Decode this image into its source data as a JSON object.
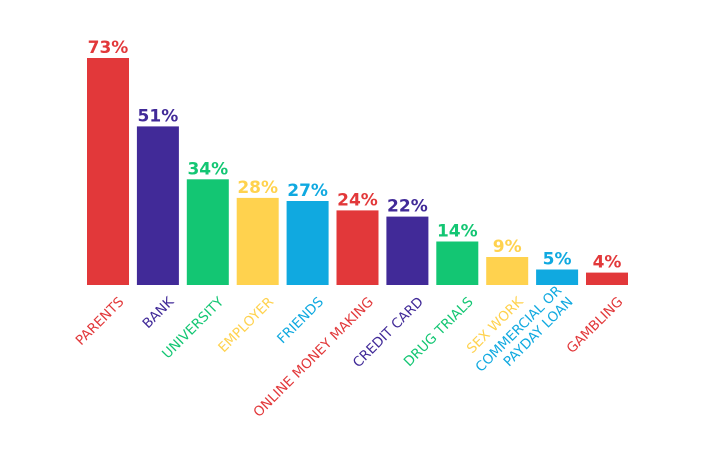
{
  "chart_data": {
    "type": "bar",
    "categories": [
      "PARENTS",
      "BANK",
      "UNIVERSITY",
      "EMPLOYER",
      "FRIENDS",
      "ONLINE MONEY MAKING",
      "CREDIT CARD",
      "DRUG TRIALS",
      "SEX WORK",
      "COMMERCIAL OR PAYDAY LOAN",
      "GAMBLING"
    ],
    "category_lines": [
      [
        "PARENTS"
      ],
      [
        "BANK"
      ],
      [
        "UNIVERSITY"
      ],
      [
        "EMPLOYER"
      ],
      [
        "FRIENDS"
      ],
      [
        "ONLINE MONEY MAKING"
      ],
      [
        "CREDIT CARD"
      ],
      [
        "DRUG TRIALS"
      ],
      [
        "SEX WORK"
      ],
      [
        "COMMERCIAL OR",
        "PAYDAY LOAN"
      ],
      [
        "GAMBLING"
      ]
    ],
    "values": [
      73,
      51,
      34,
      28,
      27,
      24,
      22,
      14,
      9,
      5,
      4
    ],
    "value_labels": [
      "73%",
      "51%",
      "34%",
      "28%",
      "27%",
      "24%",
      "22%",
      "14%",
      "9%",
      "5%",
      "4%"
    ],
    "colors": [
      "#e2383a",
      "#412a98",
      "#13c673",
      "#ffd24e",
      "#10a9e0",
      "#e2383a",
      "#412a98",
      "#13c673",
      "#ffd24e",
      "#10a9e0",
      "#e2383a"
    ],
    "value_unit": "%",
    "ylim": [
      0,
      73
    ],
    "title": "",
    "xlabel": "",
    "ylabel": "",
    "grid": false,
    "legend": "none"
  }
}
